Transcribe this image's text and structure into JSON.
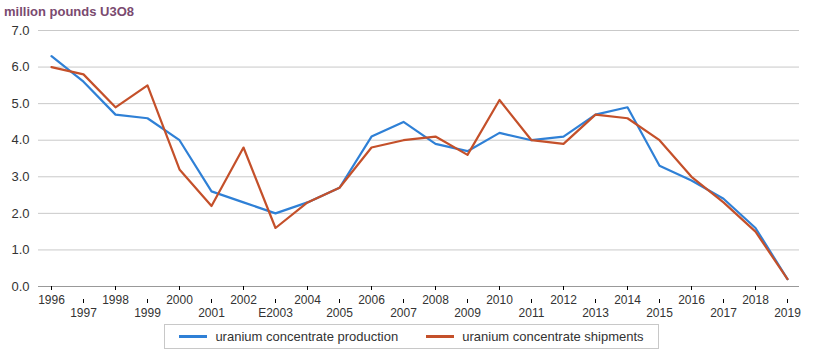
{
  "chart_data": {
    "type": "line",
    "title": "million pounds U3O8",
    "categories": [
      "1996",
      "1997",
      "1998",
      "1999",
      "2000",
      "2001",
      "2002",
      "E2003",
      "2004",
      "2005",
      "2006",
      "2007",
      "2008",
      "2009",
      "2010",
      "2011",
      "2012",
      "2013",
      "2014",
      "2015",
      "2016",
      "2017",
      "2018",
      "2019"
    ],
    "series": [
      {
        "name": "uranium concentrate production",
        "color": "#2f80d6",
        "values": [
          6.3,
          5.6,
          4.7,
          4.6,
          4.0,
          2.6,
          2.3,
          2.0,
          2.3,
          2.7,
          4.1,
          4.5,
          3.9,
          3.7,
          4.2,
          4.0,
          4.1,
          4.7,
          4.9,
          3.3,
          2.9,
          2.4,
          1.6,
          0.2
        ]
      },
      {
        "name": "uranium concentrate shipments",
        "color": "#c4502a",
        "values": [
          6.0,
          5.8,
          4.9,
          5.5,
          3.2,
          2.2,
          3.8,
          1.6,
          2.3,
          2.7,
          3.8,
          4.0,
          4.1,
          3.6,
          5.1,
          4.0,
          3.9,
          4.7,
          4.6,
          4.0,
          3.0,
          2.3,
          1.5,
          0.2
        ]
      }
    ],
    "ylim": [
      0,
      7
    ],
    "yticks": [
      0,
      1,
      2,
      3,
      4,
      5,
      6,
      7
    ],
    "grid": true,
    "legend": "bottom"
  }
}
